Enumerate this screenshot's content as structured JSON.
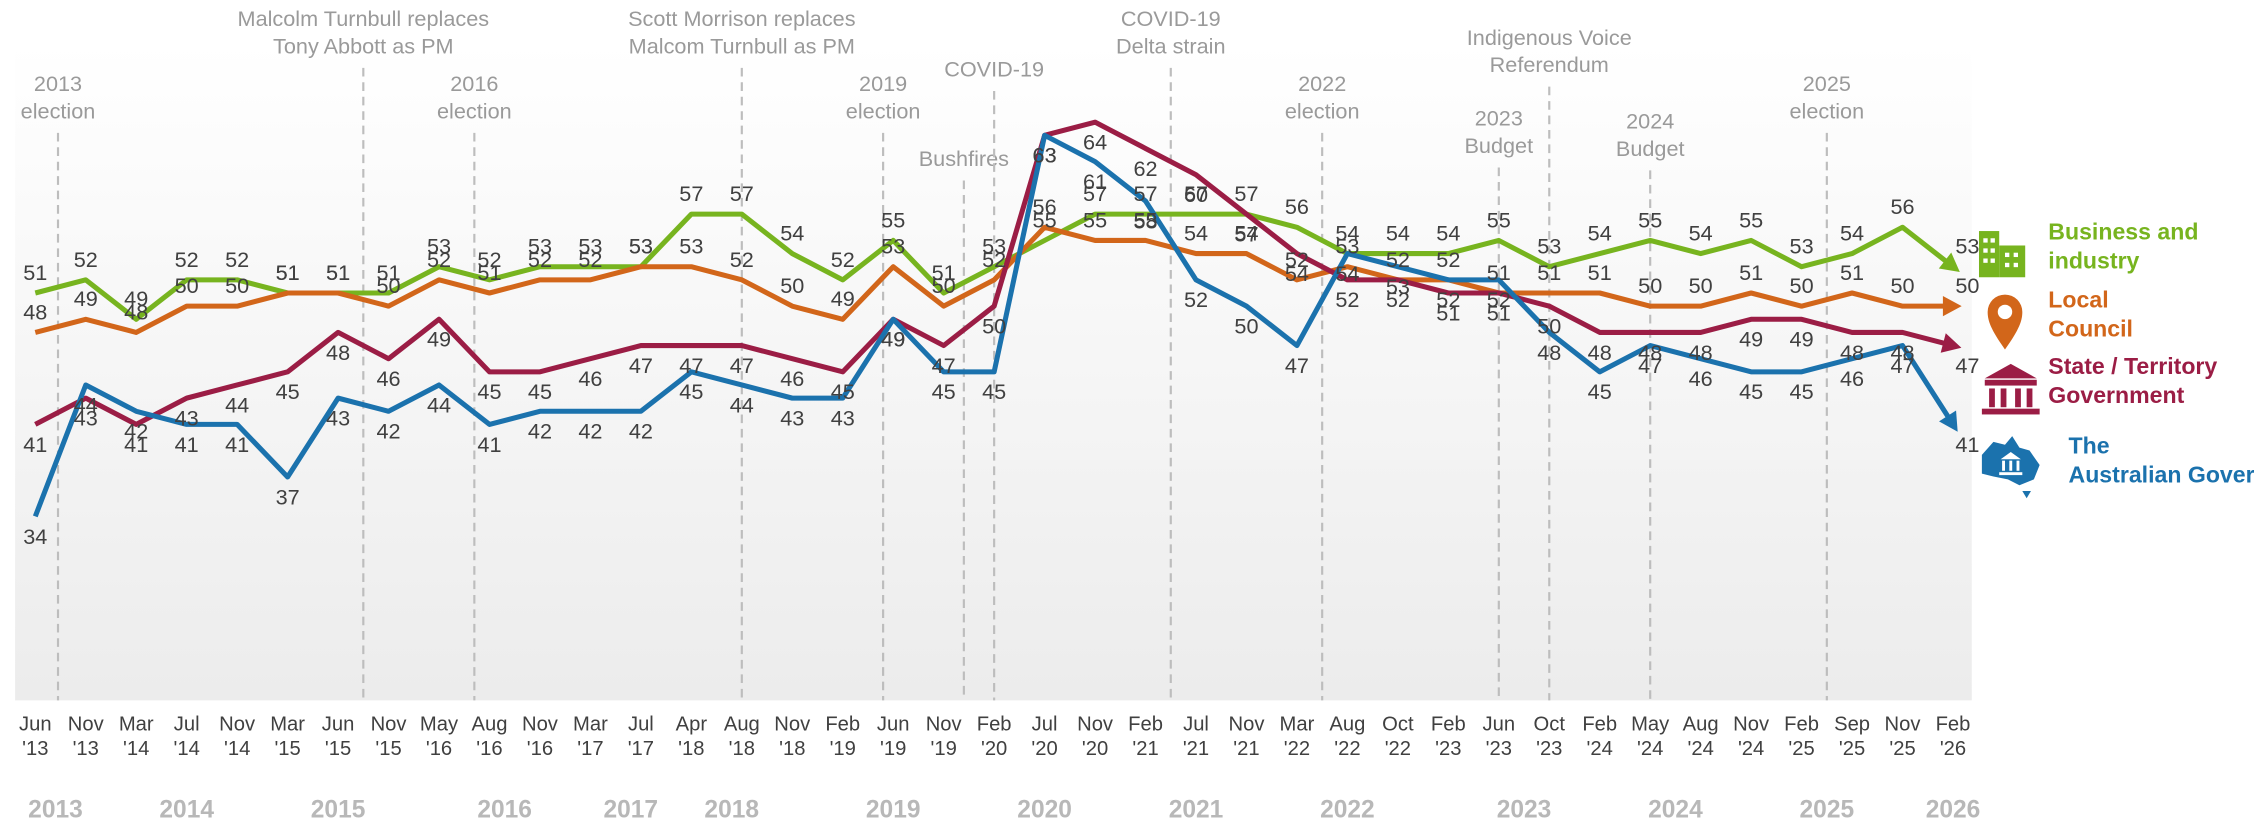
{
  "chart_data": {
    "type": "line",
    "categories": [
      "Jun '13",
      "Nov '13",
      "Mar '14",
      "Jul '14",
      "Nov '14",
      "Mar '15",
      "Jun '15",
      "Nov '15",
      "May '16",
      "Aug '16",
      "Nov '16",
      "Mar '17",
      "Jul '17",
      "Apr '18",
      "Aug '18",
      "Nov '18",
      "Feb '19",
      "Jun '19",
      "Nov '19",
      "Feb '20",
      "Jul '20",
      "Nov '20",
      "Feb '21",
      "Jul '21",
      "Nov '21",
      "Mar '22",
      "Aug '22",
      "Oct '22",
      "Feb '23",
      "Jun '23",
      "Oct '23",
      "Feb '24",
      "May '24",
      "Aug '24",
      "Nov '24",
      "Feb '25",
      "Sep '25",
      "Nov '25",
      "Feb '26"
    ],
    "series": [
      {
        "name": "Business and industry",
        "color": "#77b41f",
        "values": [
          51,
          52,
          49,
          52,
          52,
          51,
          51,
          51,
          53,
          52,
          53,
          53,
          53,
          57,
          57,
          54,
          52,
          55,
          51,
          53,
          55,
          57,
          57,
          57,
          57,
          56,
          54,
          54,
          54,
          55,
          53,
          54,
          55,
          54,
          55,
          53,
          54,
          56,
          53
        ]
      },
      {
        "name": "Local Council",
        "color": "#d2661a",
        "values": [
          48,
          49,
          48,
          50,
          50,
          51,
          51,
          50,
          52,
          51,
          52,
          52,
          53,
          53,
          52,
          50,
          49,
          53,
          50,
          52,
          56,
          55,
          55,
          54,
          54,
          52,
          53,
          52,
          52,
          51,
          51,
          51,
          50,
          50,
          51,
          50,
          51,
          50,
          50
        ]
      },
      {
        "name": "State / Territory Government",
        "color": "#9b1d45",
        "values": [
          41,
          43,
          41,
          43,
          44,
          45,
          48,
          46,
          49,
          45,
          45,
          46,
          47,
          47,
          47,
          46,
          45,
          49,
          47,
          50,
          63,
          64,
          62,
          60,
          57,
          54,
          52,
          52,
          51,
          51,
          50,
          48,
          48,
          48,
          49,
          49,
          48,
          48,
          47
        ]
      },
      {
        "name": "The Australian Government",
        "color": "#1b72ad",
        "values": [
          34,
          44,
          42,
          41,
          41,
          37,
          43,
          42,
          44,
          41,
          42,
          42,
          42,
          45,
          44,
          43,
          43,
          49,
          45,
          45,
          63,
          61,
          58,
          52,
          50,
          47,
          54,
          53,
          52,
          52,
          48,
          45,
          47,
          46,
          45,
          45,
          46,
          47,
          41
        ]
      }
    ],
    "ylim": [
      20,
      70
    ],
    "annotations": [
      {
        "lines": [
          "2013",
          "election"
        ]
      },
      {
        "lines": [
          "Malcolm Turnbull replaces",
          "Tony Abbott as PM"
        ]
      },
      {
        "lines": [
          "2016",
          "election"
        ]
      },
      {
        "lines": [
          "Scott Morrison replaces",
          "Malcom Turnbull as PM"
        ]
      },
      {
        "lines": [
          "2019",
          "election"
        ]
      },
      {
        "lines": [
          "Bushfires"
        ]
      },
      {
        "lines": [
          "COVID-19"
        ]
      },
      {
        "lines": [
          "COVID-19",
          "Delta strain"
        ]
      },
      {
        "lines": [
          "2022",
          "election"
        ]
      },
      {
        "lines": [
          "2023",
          "Budget"
        ]
      },
      {
        "lines": [
          "Indigenous Voice",
          "Referendum"
        ]
      },
      {
        "lines": [
          "2024",
          "Budget"
        ]
      },
      {
        "lines": [
          "2025",
          "election"
        ]
      }
    ],
    "years": [
      "2013",
      "2014",
      "2015",
      "2016",
      "2017",
      "2018",
      "2019",
      "2020",
      "2021",
      "2022",
      "2023",
      "2024",
      "2025",
      "2026"
    ]
  }
}
